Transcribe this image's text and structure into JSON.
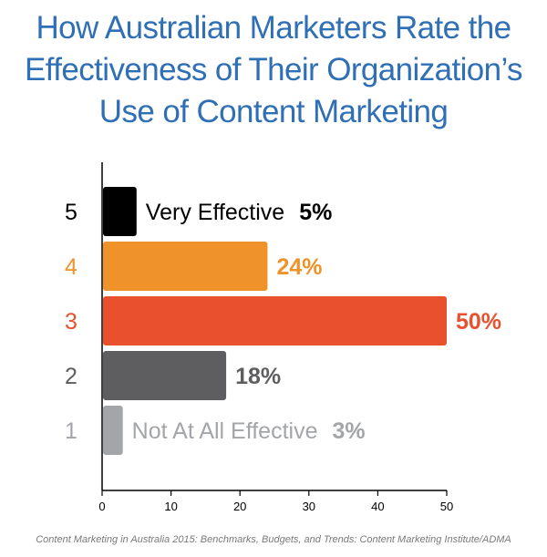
{
  "title_lines": [
    "How Australian Marketers Rate the",
    "Effectiveness of Their Organization’s",
    "Use of Content Marketing"
  ],
  "source": "Content Marketing in Australia 2015: Benchmarks, Budgets, and Trends: Content Marketing Institute/ADMA",
  "chart_data": {
    "type": "bar",
    "orientation": "horizontal",
    "title": "How Australian Marketers Rate the Effectiveness of Their Organization’s Use of Content Marketing",
    "categories": [
      "5",
      "4",
      "3",
      "2",
      "1"
    ],
    "values": [
      5,
      24,
      50,
      18,
      3
    ],
    "value_labels": [
      "5%",
      "24%",
      "50%",
      "18%",
      "3%"
    ],
    "bar_annotations": [
      "Very Effective",
      "",
      "",
      "",
      "Not At All Effective"
    ],
    "colors": [
      "#000000",
      "#f0922a",
      "#e8502e",
      "#5e5e60",
      "#a3a5a8"
    ],
    "label_colors": [
      "#000000",
      "#f0922a",
      "#e8502e",
      "#5e5e60",
      "#a3a5a8"
    ],
    "xlim": [
      0,
      50
    ],
    "xticks": [
      0,
      10,
      20,
      30,
      40,
      50
    ],
    "grid": false,
    "legend": "none"
  }
}
